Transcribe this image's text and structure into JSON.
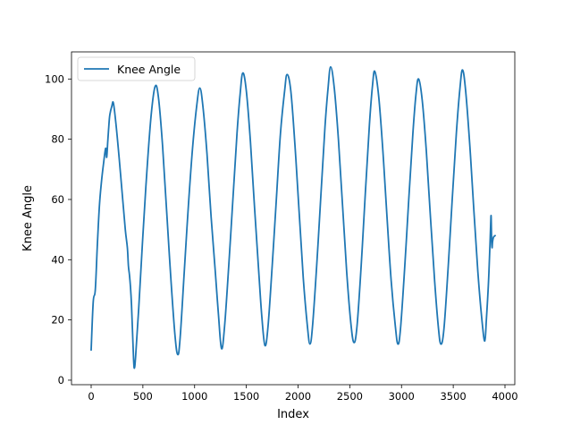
{
  "chart_data": {
    "type": "line",
    "title": "",
    "xlabel": "Index",
    "ylabel": "Knee Angle",
    "xlim": [
      -190,
      4095
    ],
    "ylim": [
      -1.5,
      109
    ],
    "x_ticks": [
      0,
      500,
      1000,
      1500,
      2000,
      2500,
      3000,
      3500,
      4000
    ],
    "y_ticks": [
      0,
      20,
      40,
      60,
      80,
      100
    ],
    "grid": false,
    "legend_position": "top-left",
    "series": [
      {
        "name": "Knee Angle",
        "color": "#1f77b4",
        "keypoints": [
          [
            0,
            10
          ],
          [
            20,
            26
          ],
          [
            40,
            30
          ],
          [
            60,
            45
          ],
          [
            80,
            58
          ],
          [
            100,
            66
          ],
          [
            120,
            72
          ],
          [
            140,
            77
          ],
          [
            150,
            74
          ],
          [
            160,
            79
          ],
          [
            170,
            84
          ],
          [
            180,
            88
          ],
          [
            200,
            91
          ],
          [
            215,
            92
          ],
          [
            240,
            85
          ],
          [
            270,
            74
          ],
          [
            300,
            62
          ],
          [
            330,
            50
          ],
          [
            350,
            44
          ],
          [
            360,
            38
          ],
          [
            370,
            35
          ],
          [
            380,
            31
          ],
          [
            390,
            25
          ],
          [
            400,
            16
          ],
          [
            410,
            7
          ],
          [
            418,
            4
          ],
          [
            430,
            8
          ],
          [
            460,
            24
          ],
          [
            500,
            48
          ],
          [
            540,
            70
          ],
          [
            580,
            88
          ],
          [
            618,
            97.5
          ],
          [
            650,
            94
          ],
          [
            690,
            78
          ],
          [
            730,
            56
          ],
          [
            770,
            34
          ],
          [
            810,
            15
          ],
          [
            837,
            8.5
          ],
          [
            860,
            14
          ],
          [
            900,
            36
          ],
          [
            940,
            58
          ],
          [
            980,
            77
          ],
          [
            1020,
            91
          ],
          [
            1050,
            97
          ],
          [
            1080,
            91
          ],
          [
            1120,
            75
          ],
          [
            1160,
            54
          ],
          [
            1200,
            36
          ],
          [
            1230,
            22
          ],
          [
            1260,
            10.5
          ],
          [
            1290,
            18
          ],
          [
            1330,
            38
          ],
          [
            1370,
            60
          ],
          [
            1410,
            82
          ],
          [
            1440,
            95
          ],
          [
            1466,
            102
          ],
          [
            1500,
            96
          ],
          [
            1540,
            79
          ],
          [
            1580,
            57
          ],
          [
            1620,
            36
          ],
          [
            1650,
            21
          ],
          [
            1680,
            11.5
          ],
          [
            1710,
            18
          ],
          [
            1750,
            38
          ],
          [
            1790,
            60
          ],
          [
            1830,
            82
          ],
          [
            1870,
            96
          ],
          [
            1894,
            101.5
          ],
          [
            1930,
            96
          ],
          [
            1970,
            78
          ],
          [
            2010,
            56
          ],
          [
            2050,
            34
          ],
          [
            2090,
            18
          ],
          [
            2115,
            12
          ],
          [
            2140,
            18
          ],
          [
            2180,
            38
          ],
          [
            2220,
            61
          ],
          [
            2260,
            84
          ],
          [
            2290,
            97
          ],
          [
            2315,
            104
          ],
          [
            2350,
            97
          ],
          [
            2390,
            80
          ],
          [
            2430,
            58
          ],
          [
            2470,
            36
          ],
          [
            2510,
            19
          ],
          [
            2540,
            12.5
          ],
          [
            2570,
            18
          ],
          [
            2610,
            38
          ],
          [
            2650,
            62
          ],
          [
            2690,
            85
          ],
          [
            2720,
            98
          ],
          [
            2742,
            102.5
          ],
          [
            2780,
            94
          ],
          [
            2820,
            76
          ],
          [
            2860,
            54
          ],
          [
            2900,
            33
          ],
          [
            2940,
            18
          ],
          [
            2965,
            12
          ],
          [
            2990,
            17
          ],
          [
            3030,
            37
          ],
          [
            3070,
            60
          ],
          [
            3110,
            82
          ],
          [
            3140,
            95
          ],
          [
            3165,
            100
          ],
          [
            3200,
            93
          ],
          [
            3240,
            76
          ],
          [
            3280,
            54
          ],
          [
            3320,
            33
          ],
          [
            3355,
            18
          ],
          [
            3380,
            12
          ],
          [
            3410,
            17
          ],
          [
            3450,
            37
          ],
          [
            3490,
            60
          ],
          [
            3530,
            82
          ],
          [
            3565,
            97
          ],
          [
            3590,
            103
          ],
          [
            3620,
            96
          ],
          [
            3660,
            78
          ],
          [
            3700,
            56
          ],
          [
            3740,
            35
          ],
          [
            3780,
            19
          ],
          [
            3805,
            13
          ],
          [
            3820,
            20
          ],
          [
            3840,
            32
          ],
          [
            3855,
            45
          ],
          [
            3862,
            52
          ],
          [
            3866,
            54.5
          ],
          [
            3870,
            48
          ],
          [
            3875,
            44
          ],
          [
            3880,
            46
          ],
          [
            3890,
            47.5
          ],
          [
            3905,
            48
          ]
        ]
      }
    ]
  }
}
